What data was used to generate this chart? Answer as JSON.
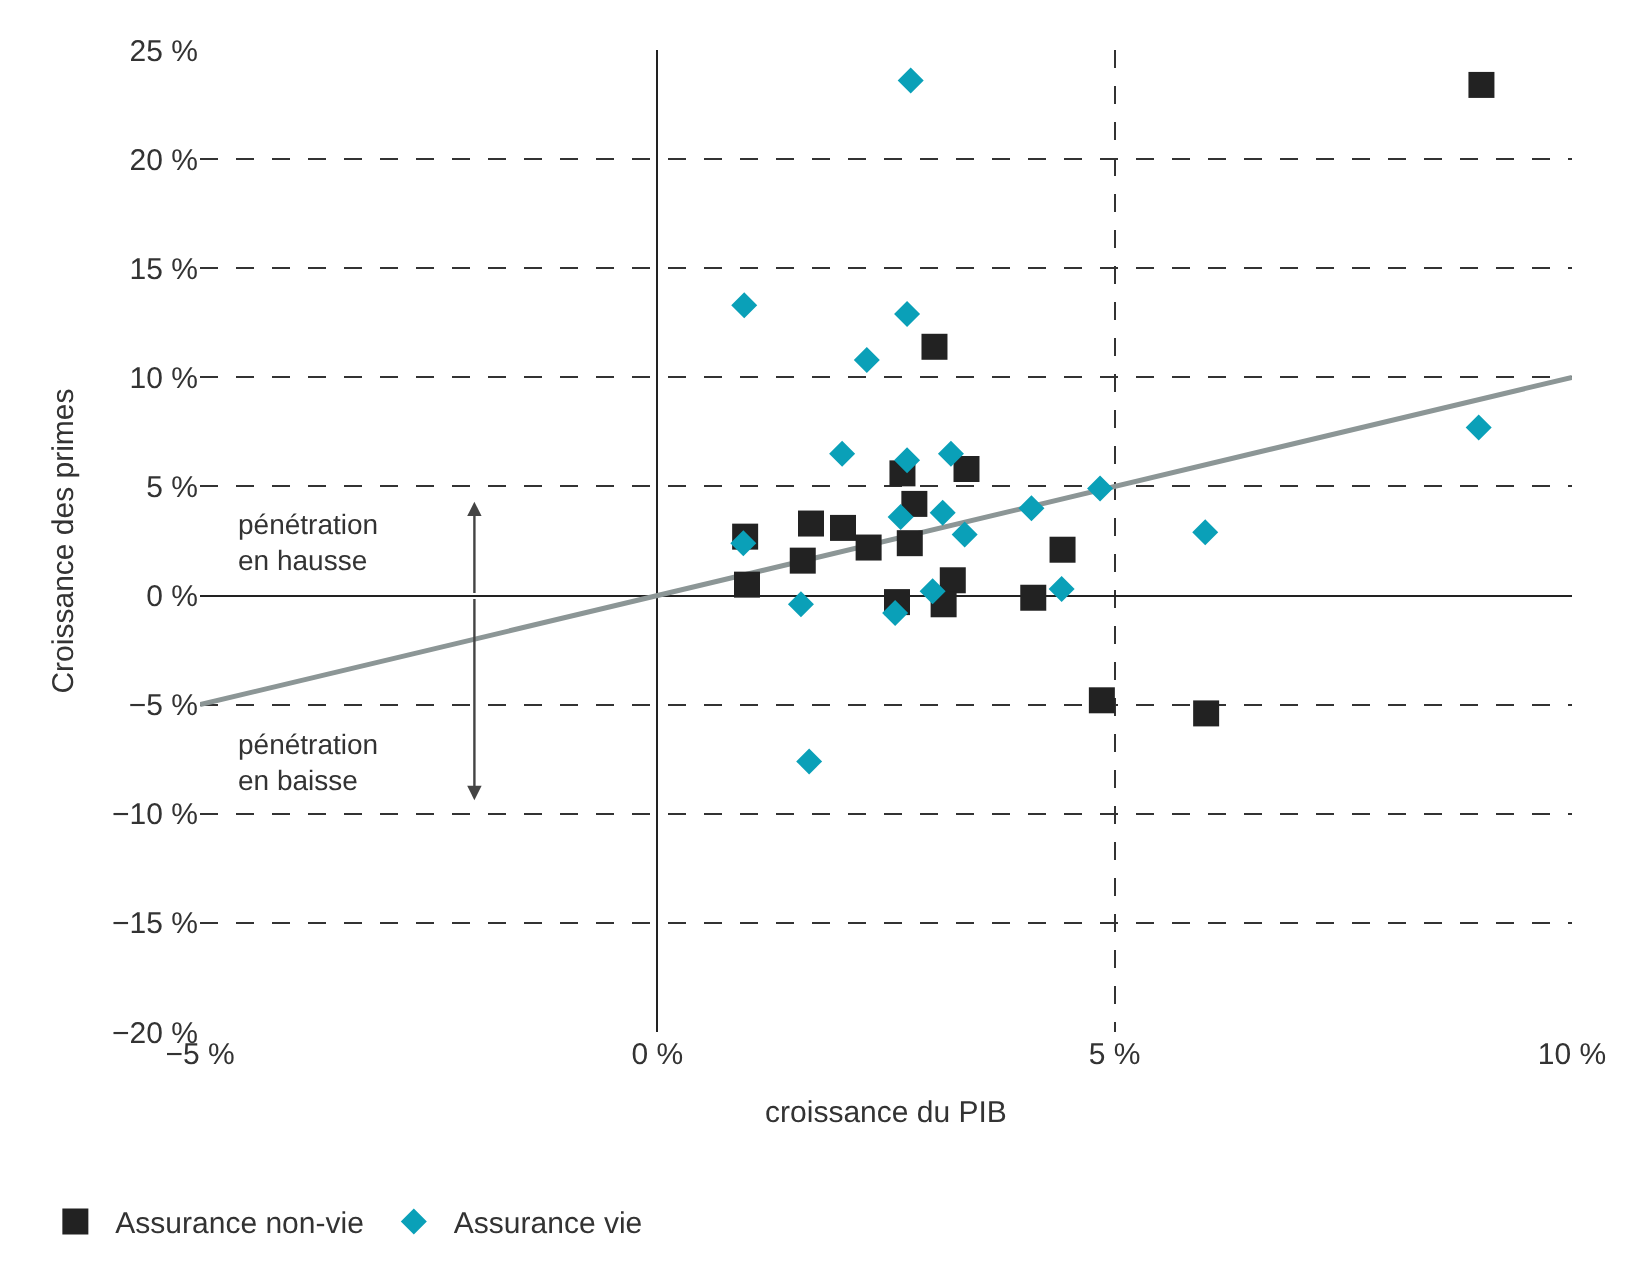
{
  "chart_data": {
    "type": "scatter",
    "xlabel": "croissance du PIB",
    "ylabel": "Croissance des primes",
    "xlim": [
      -5,
      10
    ],
    "xticks": [
      {
        "value": -5,
        "label": "−5 %"
      },
      {
        "value": 0,
        "label": "0 %"
      },
      {
        "value": 5,
        "label": "5 %"
      },
      {
        "value": 10,
        "label": "10 %"
      }
    ],
    "ylim": [
      -20,
      25
    ],
    "yticks": [
      {
        "value": -20,
        "label": "−20 %"
      },
      {
        "value": -15,
        "label": "−15 %"
      },
      {
        "value": -10,
        "label": "−10 %"
      },
      {
        "value": -5,
        "label": "−5 %"
      },
      {
        "value": 0,
        "label": "0 %"
      },
      {
        "value": 5,
        "label": "5 %"
      },
      {
        "value": 10,
        "label": "10 %"
      },
      {
        "value": 15,
        "label": "15 %"
      },
      {
        "value": 20,
        "label": "20 %"
      },
      {
        "value": 25,
        "label": "25 %"
      }
    ],
    "grid": true,
    "legend": "bottom left",
    "annotations": [
      "pénétration\nen hausse",
      "pénétration\nen baisse"
    ],
    "series": [
      {
        "type": "line",
        "color": "#8c9696",
        "marker": "none",
        "x": [
          -5,
          10
        ],
        "values": [
          -5,
          10
        ]
      },
      {
        "name": "Assurance non-vie",
        "color": "#222222",
        "marker": "square",
        "x": [
          3.03,
          2.68,
          3.38,
          2.81,
          0.96,
          1.68,
          2.03,
          2.31,
          1.59,
          2.76,
          4.43,
          0.98,
          3.23,
          2.62,
          3.13,
          4.11,
          4.86,
          6.0,
          9.01
        ],
        "values": [
          11.4,
          5.6,
          5.8,
          4.2,
          2.7,
          3.3,
          3.1,
          2.2,
          1.6,
          2.4,
          2.1,
          0.5,
          0.7,
          -0.3,
          -0.4,
          -0.1,
          -4.8,
          -5.4,
          23.4
        ]
      },
      {
        "name": "Assurance vie",
        "color": "#0aa0b8",
        "marker": "diamond",
        "x": [
          0.95,
          2.73,
          2.29,
          2.02,
          2.73,
          3.21,
          3.12,
          2.66,
          4.09,
          4.84,
          3.36,
          0.94,
          5.99,
          1.57,
          2.6,
          3.01,
          4.42,
          1.66,
          2.77,
          8.98
        ],
        "values": [
          13.3,
          12.9,
          10.8,
          6.5,
          6.2,
          6.5,
          3.8,
          3.6,
          4.0,
          4.9,
          2.8,
          2.4,
          2.9,
          -0.4,
          -0.8,
          0.2,
          0.3,
          -7.6,
          23.6,
          7.7
        ]
      }
    ]
  }
}
